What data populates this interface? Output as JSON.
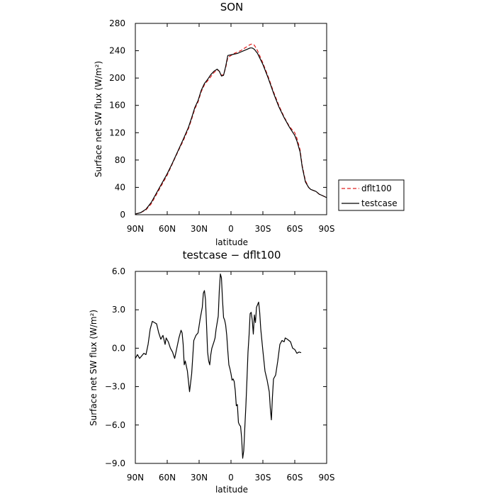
{
  "chart_data": [
    {
      "type": "line",
      "title": "SON",
      "xlabel": "latitude",
      "ylabel": "Surface net SW flux (W/m²)",
      "xlim": [
        90,
        -90
      ],
      "ylim": [
        0,
        280
      ],
      "x_ticks": [
        90,
        60,
        30,
        0,
        -30,
        -60,
        -90
      ],
      "x_tick_labels": [
        "90N",
        "60N",
        "30N",
        "0",
        "30S",
        "60S",
        "90S"
      ],
      "y_ticks": [
        0,
        40,
        80,
        120,
        160,
        200,
        240,
        280
      ],
      "y_tick_labels": [
        "0",
        "40",
        "80",
        "120",
        "160",
        "200",
        "240",
        "280"
      ],
      "grid": false,
      "legend_position": "right",
      "series": [
        {
          "name": "dflt100",
          "color": "#e02020",
          "dash": "dashed",
          "points": [
            [
              90,
              1
            ],
            [
              85,
              3
            ],
            [
              80,
              7
            ],
            [
              75,
              16
            ],
            [
              70,
              30
            ],
            [
              65,
              44
            ],
            [
              60,
              58
            ],
            [
              55,
              75
            ],
            [
              50,
              92
            ],
            [
              45,
              108
            ],
            [
              40,
              126
            ],
            [
              37,
              140
            ],
            [
              34,
              155
            ],
            [
              31,
              165
            ],
            [
              28,
              180
            ],
            [
              25,
              190
            ],
            [
              22,
              196
            ],
            [
              19,
              202
            ],
            [
              16,
              208
            ],
            [
              13,
              212
            ],
            [
              11,
              210
            ],
            [
              9,
              204
            ],
            [
              7,
              205
            ],
            [
              5,
              215
            ],
            [
              3,
              230
            ],
            [
              0,
              233
            ],
            [
              -3,
              236
            ],
            [
              -6,
              238
            ],
            [
              -9,
              240
            ],
            [
              -12,
              243
            ],
            [
              -15,
              246
            ],
            [
              -18,
              249
            ],
            [
              -20,
              250
            ],
            [
              -22,
              248
            ],
            [
              -25,
              240
            ],
            [
              -30,
              222
            ],
            [
              -35,
              202
            ],
            [
              -40,
              180
            ],
            [
              -45,
              160
            ],
            [
              -50,
              143
            ],
            [
              -55,
              129
            ],
            [
              -60,
              120
            ],
            [
              -62,
              112
            ],
            [
              -65,
              95
            ],
            [
              -67,
              72
            ],
            [
              -70,
              50
            ],
            [
              -73,
              40
            ],
            [
              -75,
              37
            ],
            [
              -80,
              34
            ],
            [
              -83,
              30
            ],
            [
              -86,
              28
            ],
            [
              -90,
              25
            ]
          ]
        },
        {
          "name": "testcase",
          "color": "#000000",
          "dash": "solid",
          "points": [
            [
              90,
              1
            ],
            [
              85,
              3
            ],
            [
              80,
              8
            ],
            [
              75,
              18
            ],
            [
              70,
              32
            ],
            [
              65,
              46
            ],
            [
              60,
              60
            ],
            [
              55,
              76
            ],
            [
              50,
              93
            ],
            [
              45,
              110
            ],
            [
              40,
              128
            ],
            [
              37,
              142
            ],
            [
              34,
              157
            ],
            [
              31,
              167
            ],
            [
              28,
              182
            ],
            [
              25,
              192
            ],
            [
              22,
              198
            ],
            [
              19,
              205
            ],
            [
              16,
              210
            ],
            [
              13,
              213
            ],
            [
              11,
              210
            ],
            [
              9,
              203
            ],
            [
              7,
              204
            ],
            [
              5,
              217
            ],
            [
              3,
              233
            ],
            [
              0,
              234
            ],
            [
              -3,
              235
            ],
            [
              -6,
              236
            ],
            [
              -9,
              238
            ],
            [
              -12,
              240
            ],
            [
              -15,
              242
            ],
            [
              -18,
              244
            ],
            [
              -20,
              244
            ],
            [
              -22,
              242
            ],
            [
              -25,
              236
            ],
            [
              -30,
              220
            ],
            [
              -35,
              200
            ],
            [
              -40,
              178
            ],
            [
              -45,
              158
            ],
            [
              -50,
              142
            ],
            [
              -55,
              128
            ],
            [
              -60,
              116
            ],
            [
              -62,
              108
            ],
            [
              -65,
              92
            ],
            [
              -67,
              70
            ],
            [
              -70,
              48
            ],
            [
              -73,
              40
            ],
            [
              -75,
              37
            ],
            [
              -80,
              34
            ],
            [
              -83,
              30
            ],
            [
              -86,
              28
            ],
            [
              -90,
              25
            ]
          ]
        }
      ]
    },
    {
      "type": "line",
      "title": "testcase − dflt100",
      "xlabel": "latitude",
      "ylabel": "Surface net SW flux (W/m²)",
      "xlim": [
        90,
        -90
      ],
      "ylim": [
        -9,
        6
      ],
      "x_ticks": [
        90,
        60,
        30,
        0,
        -30,
        -60,
        -90
      ],
      "x_tick_labels": [
        "90N",
        "60N",
        "30N",
        "0",
        "30S",
        "60S",
        "90S"
      ],
      "y_ticks": [
        6,
        3,
        0,
        -3,
        -6,
        -9
      ],
      "y_tick_labels": [
        "6.0",
        "3.0",
        "0.0",
        "−3.0",
        "−6.0",
        "−9.0"
      ],
      "grid": false,
      "series": [
        {
          "color": "#000000",
          "dash": "solid",
          "points": [
            [
              90,
              -0.8
            ],
            [
              88,
              -0.5
            ],
            [
              86,
              -0.8
            ],
            [
              84,
              -0.6
            ],
            [
              82,
              -0.4
            ],
            [
              80,
              -0.5
            ],
            [
              78,
              0.3
            ],
            [
              76,
              1.5
            ],
            [
              74,
              2.1
            ],
            [
              72,
              2.0
            ],
            [
              70,
              1.9
            ],
            [
              68,
              1.2
            ],
            [
              66,
              0.7
            ],
            [
              64,
              1.0
            ],
            [
              62,
              0.3
            ],
            [
              61,
              0.8
            ],
            [
              59,
              0.5
            ],
            [
              57,
              0.0
            ],
            [
              55,
              -0.3
            ],
            [
              53,
              -0.8
            ],
            [
              51,
              0.0
            ],
            [
              49,
              0.8
            ],
            [
              47,
              1.4
            ],
            [
              46,
              1.2
            ],
            [
              45,
              0.3
            ],
            [
              44,
              -1.3
            ],
            [
              43,
              -1.0
            ],
            [
              41,
              -1.8
            ],
            [
              39,
              -3.4
            ],
            [
              37,
              -2.0
            ],
            [
              35,
              0.6
            ],
            [
              33,
              1.0
            ],
            [
              31,
              1.2
            ],
            [
              29,
              2.3
            ],
            [
              27,
              3.2
            ],
            [
              26,
              4.3
            ],
            [
              25,
              4.5
            ],
            [
              24,
              3.8
            ],
            [
              23,
              1.8
            ],
            [
              22,
              -0.3
            ],
            [
              21,
              -1.0
            ],
            [
              20,
              -1.3
            ],
            [
              19,
              -0.5
            ],
            [
              18,
              0.0
            ],
            [
              16,
              0.5
            ],
            [
              15,
              0.8
            ],
            [
              14,
              1.5
            ],
            [
              12,
              2.5
            ],
            [
              11,
              4.5
            ],
            [
              10,
              5.8
            ],
            [
              9,
              5.5
            ],
            [
              8,
              3.8
            ],
            [
              7,
              2.4
            ],
            [
              6,
              2.2
            ],
            [
              5,
              1.8
            ],
            [
              4,
              1.0
            ],
            [
              3,
              -0.2
            ],
            [
              2,
              -1.3
            ],
            [
              1,
              -1.6
            ],
            [
              0,
              -2.0
            ],
            [
              -1,
              -2.5
            ],
            [
              -2,
              -2.4
            ],
            [
              -3,
              -2.6
            ],
            [
              -4,
              -3.3
            ],
            [
              -5,
              -4.5
            ],
            [
              -6,
              -4.4
            ],
            [
              -7,
              -5.8
            ],
            [
              -8,
              -6.0
            ],
            [
              -9,
              -6.1
            ],
            [
              -10,
              -7.0
            ],
            [
              -11,
              -8.6
            ],
            [
              -12,
              -8.0
            ],
            [
              -13,
              -6.2
            ],
            [
              -14,
              -4.5
            ],
            [
              -15,
              -2.5
            ],
            [
              -16,
              -0.3
            ],
            [
              -17,
              1.0
            ],
            [
              -18,
              2.7
            ],
            [
              -19,
              2.8
            ],
            [
              -20,
              2.2
            ],
            [
              -21,
              1.1
            ],
            [
              -22,
              2.6
            ],
            [
              -23,
              2.0
            ],
            [
              -24,
              3.2
            ],
            [
              -25,
              3.4
            ],
            [
              -26,
              3.6
            ],
            [
              -27,
              2.8
            ],
            [
              -28,
              1.5
            ],
            [
              -30,
              -0.2
            ],
            [
              -32,
              -1.8
            ],
            [
              -34,
              -2.5
            ],
            [
              -36,
              -3.4
            ],
            [
              -37,
              -4.7
            ],
            [
              -38,
              -5.6
            ],
            [
              -39,
              -3.8
            ],
            [
              -40,
              -2.4
            ],
            [
              -42,
              -2.1
            ],
            [
              -44,
              -1.0
            ],
            [
              -46,
              0.3
            ],
            [
              -48,
              0.6
            ],
            [
              -50,
              0.5
            ],
            [
              -51,
              0.8
            ],
            [
              -53,
              0.7
            ],
            [
              -56,
              0.5
            ],
            [
              -58,
              0.0
            ],
            [
              -60,
              -0.1
            ],
            [
              -62,
              -0.4
            ],
            [
              -64,
              -0.3
            ],
            [
              -66,
              -0.35
            ]
          ]
        }
      ]
    }
  ]
}
